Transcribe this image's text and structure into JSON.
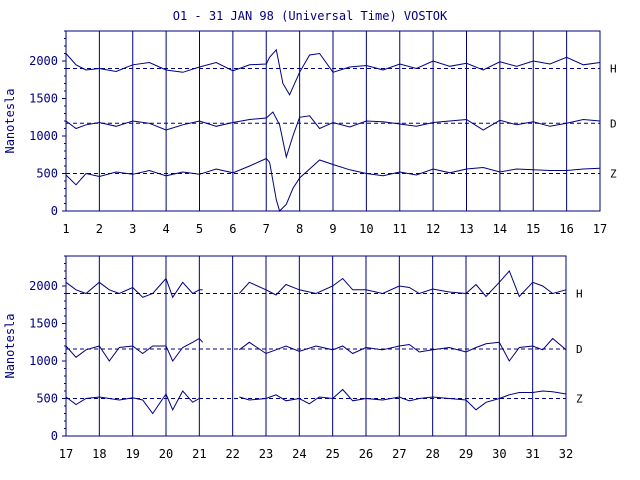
{
  "title": "O1 - 31 JAN 98 (Universal Time) VOSTOK",
  "colors": {
    "ink": "#000080",
    "background": "#ffffff"
  },
  "chart_data": [
    {
      "type": "line",
      "ylabel": "Nanotesla",
      "xlim": [
        1,
        17
      ],
      "ylim": [
        0,
        2400
      ],
      "yticks": [
        0,
        500,
        1000,
        1500,
        2000
      ],
      "xticks": [
        1,
        2,
        3,
        4,
        5,
        6,
        7,
        8,
        9,
        10,
        11,
        12,
        13,
        14,
        15,
        16,
        17
      ],
      "grid": "vertical day lines",
      "series": [
        {
          "name": "H",
          "baseline": 1900,
          "x": [
            1,
            1.3,
            1.6,
            2,
            2.5,
            3,
            3.5,
            4,
            4.5,
            5,
            5.5,
            6,
            6.5,
            7,
            7.1,
            7.3,
            7.5,
            7.7,
            8,
            8.3,
            8.6,
            9,
            9.5,
            10,
            10.5,
            11,
            11.5,
            12,
            12.5,
            13,
            13.5,
            14,
            14.5,
            15,
            15.5,
            16,
            16.5,
            17
          ],
          "values": [
            2100,
            1950,
            1880,
            1900,
            1860,
            1950,
            1980,
            1880,
            1850,
            1920,
            1980,
            1870,
            1950,
            1960,
            2050,
            2150,
            1700,
            1550,
            1850,
            2080,
            2100,
            1850,
            1920,
            1940,
            1880,
            1960,
            1900,
            2000,
            1930,
            1970,
            1880,
            1990,
            1930,
            2000,
            1960,
            2050,
            1950,
            1980
          ]
        },
        {
          "name": "D",
          "baseline": 1170,
          "x": [
            1,
            1.3,
            1.6,
            2,
            2.5,
            3,
            3.5,
            4,
            4.5,
            5,
            5.5,
            6,
            6.5,
            7,
            7.2,
            7.4,
            7.6,
            7.8,
            8,
            8.3,
            8.6,
            9,
            9.5,
            10,
            10.5,
            11,
            11.5,
            12,
            12.5,
            13,
            13.5,
            14,
            14.5,
            15,
            15.5,
            16,
            16.5,
            17
          ],
          "values": [
            1200,
            1100,
            1150,
            1180,
            1130,
            1200,
            1170,
            1080,
            1150,
            1200,
            1130,
            1180,
            1220,
            1240,
            1320,
            1150,
            720,
            1000,
            1250,
            1270,
            1100,
            1180,
            1120,
            1200,
            1190,
            1160,
            1130,
            1180,
            1200,
            1220,
            1080,
            1210,
            1150,
            1190,
            1130,
            1170,
            1220,
            1200
          ]
        },
        {
          "name": "Z",
          "baseline": 500,
          "x": [
            1,
            1.3,
            1.6,
            2,
            2.5,
            3,
            3.5,
            4,
            4.5,
            5,
            5.5,
            6,
            6.5,
            7,
            7.1,
            7.3,
            7.4,
            7.6,
            7.8,
            8,
            8.3,
            8.6,
            9,
            9.5,
            10,
            10.5,
            11,
            11.5,
            12,
            12.5,
            13,
            13.5,
            14,
            14.5,
            15,
            15.5,
            16,
            16.5,
            17
          ],
          "values": [
            480,
            350,
            500,
            460,
            520,
            490,
            540,
            470,
            520,
            490,
            560,
            510,
            600,
            700,
            650,
            150,
            0,
            90,
            300,
            440,
            560,
            680,
            620,
            550,
            500,
            470,
            520,
            480,
            560,
            510,
            560,
            580,
            520,
            560,
            550,
            540,
            540,
            560,
            570
          ]
        }
      ]
    },
    {
      "type": "line",
      "ylabel": "Nanotesla",
      "xlim": [
        17,
        32
      ],
      "ylim": [
        0,
        2400
      ],
      "yticks": [
        0,
        500,
        1000,
        1500,
        2000
      ],
      "xticks": [
        17,
        18,
        19,
        20,
        21,
        22,
        23,
        24,
        25,
        26,
        27,
        28,
        29,
        30,
        31,
        32
      ],
      "grid": "vertical day lines",
      "series": [
        {
          "name": "H",
          "baseline": 1900,
          "x": [
            17,
            17.3,
            17.6,
            18,
            18.3,
            18.6,
            19,
            19.3,
            19.6,
            20,
            20.2,
            20.5,
            20.8,
            21,
            21.1,
            22,
            22.2,
            22.5,
            23,
            23.3,
            23.6,
            24,
            24.5,
            25,
            25.3,
            25.6,
            26,
            26.5,
            27,
            27.3,
            27.6,
            28,
            28.5,
            29,
            29.3,
            29.6,
            30,
            30.3,
            30.6,
            31,
            31.3,
            31.6,
            32
          ],
          "values": [
            2050,
            1950,
            1900,
            2050,
            1950,
            1900,
            1980,
            1850,
            1900,
            2100,
            1850,
            2050,
            1900,
            1950,
            1950,
            null,
            1900,
            2050,
            1950,
            1880,
            2020,
            1950,
            1900,
            2000,
            2100,
            1950,
            1950,
            1900,
            2000,
            1980,
            1900,
            1960,
            1920,
            1900,
            2020,
            1860,
            2050,
            2200,
            1860,
            2050,
            2000,
            1900,
            1950
          ]
        },
        {
          "name": "D",
          "baseline": 1160,
          "x": [
            17,
            17.3,
            17.6,
            18,
            18.3,
            18.6,
            19,
            19.3,
            19.6,
            20,
            20.2,
            20.5,
            20.8,
            21,
            21.1,
            22,
            22.2,
            22.5,
            23,
            23.3,
            23.6,
            24,
            24.5,
            25,
            25.3,
            25.6,
            26,
            26.5,
            27,
            27.3,
            27.6,
            28,
            28.5,
            29,
            29.3,
            29.6,
            30,
            30.3,
            30.6,
            31,
            31.3,
            31.6,
            32
          ],
          "values": [
            1200,
            1050,
            1150,
            1200,
            1000,
            1180,
            1200,
            1100,
            1200,
            1200,
            1000,
            1180,
            1250,
            1300,
            1250,
            null,
            1150,
            1250,
            1100,
            1150,
            1200,
            1130,
            1200,
            1150,
            1200,
            1100,
            1180,
            1150,
            1200,
            1220,
            1120,
            1150,
            1180,
            1120,
            1180,
            1230,
            1250,
            1000,
            1180,
            1200,
            1150,
            1300,
            1150
          ]
        },
        {
          "name": "Z",
          "baseline": 500,
          "x": [
            17,
            17.3,
            17.6,
            18,
            18.3,
            18.6,
            19,
            19.3,
            19.6,
            20,
            20.2,
            20.5,
            20.8,
            21,
            21.1,
            22,
            22.2,
            22.5,
            23,
            23.3,
            23.6,
            24,
            24.3,
            24.6,
            25,
            25.3,
            25.6,
            26,
            26.5,
            27,
            27.3,
            27.6,
            28,
            28.5,
            29,
            29.3,
            29.6,
            30,
            30.3,
            30.6,
            31,
            31.3,
            31.6,
            32
          ],
          "values": [
            520,
            420,
            500,
            520,
            500,
            480,
            510,
            480,
            300,
            560,
            350,
            600,
            450,
            500,
            500,
            null,
            520,
            480,
            500,
            550,
            470,
            500,
            430,
            520,
            500,
            620,
            470,
            500,
            480,
            520,
            470,
            500,
            520,
            500,
            480,
            350,
            450,
            500,
            550,
            580,
            580,
            600,
            590,
            560
          ]
        }
      ]
    }
  ]
}
